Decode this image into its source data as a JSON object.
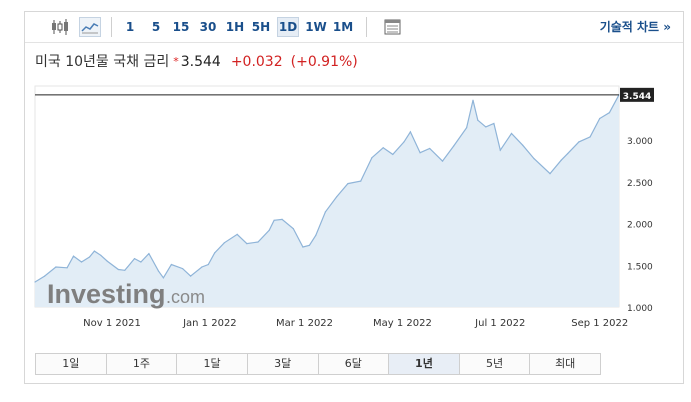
{
  "toolbar": {
    "intervals": [
      "1",
      "5",
      "15",
      "30",
      "1H",
      "5H",
      "1D",
      "1W",
      "1M"
    ],
    "active_interval": "1D",
    "technical_link": "기술적 차트 »"
  },
  "header": {
    "instrument": "미국 10년물 국채 금리",
    "star": "*",
    "last": "3.544",
    "change": "+0.032",
    "change_pct": "(+0.91%)",
    "change_color": "#d22222"
  },
  "watermark": {
    "brand": "Investing",
    "suffix": ".com"
  },
  "ranges": [
    "1일",
    "1주",
    "1달",
    "3달",
    "6달",
    "1년",
    "5년",
    "최대"
  ],
  "active_range": "1년",
  "chart_data": {
    "type": "area",
    "title": "",
    "xlabel": "",
    "ylabel": "",
    "x_ticks": [
      "Nov 1 2021",
      "Jan 1 2022",
      "Mar 1 2022",
      "May 1 2022",
      "Jul 1 2022",
      "Sep 1 2022"
    ],
    "y_ticks": [
      "1.000",
      "1.500",
      "2.000",
      "2.500",
      "3.000"
    ],
    "ylim": [
      1.0,
      3.65
    ],
    "y_axis_position": "right",
    "grid": false,
    "last_value_label": "3.544",
    "last_value": 3.544,
    "line_color": "#8fb4d8",
    "fill_color": "#e2edf6",
    "series": [
      {
        "x": [
          "2021-09-14",
          "2021-09-20",
          "2021-09-27",
          "2021-10-04",
          "2021-10-08",
          "2021-10-13",
          "2021-10-18",
          "2021-10-21",
          "2021-10-25",
          "2021-10-29",
          "2021-11-05",
          "2021-11-09",
          "2021-11-15",
          "2021-11-19",
          "2021-11-24",
          "2021-11-30",
          "2021-12-03",
          "2021-12-08",
          "2021-12-15",
          "2021-12-20",
          "2021-12-27",
          "2021-12-31",
          "2022-01-04",
          "2022-01-10",
          "2022-01-18",
          "2022-01-24",
          "2022-01-31",
          "2022-02-07",
          "2022-02-10",
          "2022-02-15",
          "2022-02-22",
          "2022-02-28",
          "2022-03-04",
          "2022-03-08",
          "2022-03-14",
          "2022-03-21",
          "2022-03-28",
          "2022-04-05",
          "2022-04-12",
          "2022-04-19",
          "2022-04-25",
          "2022-05-02",
          "2022-05-06",
          "2022-05-12",
          "2022-05-18",
          "2022-05-26",
          "2022-06-02",
          "2022-06-10",
          "2022-06-14",
          "2022-06-17",
          "2022-06-22",
          "2022-06-27",
          "2022-07-01",
          "2022-07-08",
          "2022-07-15",
          "2022-07-22",
          "2022-08-01",
          "2022-08-08",
          "2022-08-12",
          "2022-08-19",
          "2022-08-26",
          "2022-09-01",
          "2022-09-07",
          "2022-09-13"
        ],
        "values": [
          1.3,
          1.37,
          1.48,
          1.47,
          1.61,
          1.54,
          1.6,
          1.67,
          1.62,
          1.55,
          1.45,
          1.44,
          1.58,
          1.54,
          1.64,
          1.43,
          1.35,
          1.51,
          1.46,
          1.37,
          1.48,
          1.51,
          1.65,
          1.77,
          1.87,
          1.76,
          1.78,
          1.92,
          2.04,
          2.05,
          1.94,
          1.72,
          1.74,
          1.86,
          2.14,
          2.32,
          2.48,
          2.51,
          2.79,
          2.91,
          2.83,
          2.98,
          3.1,
          2.85,
          2.9,
          2.75,
          2.93,
          3.15,
          3.48,
          3.24,
          3.16,
          3.2,
          2.88,
          3.08,
          2.94,
          2.78,
          2.6,
          2.76,
          2.84,
          2.98,
          3.04,
          3.26,
          3.33,
          3.544
        ]
      }
    ]
  }
}
